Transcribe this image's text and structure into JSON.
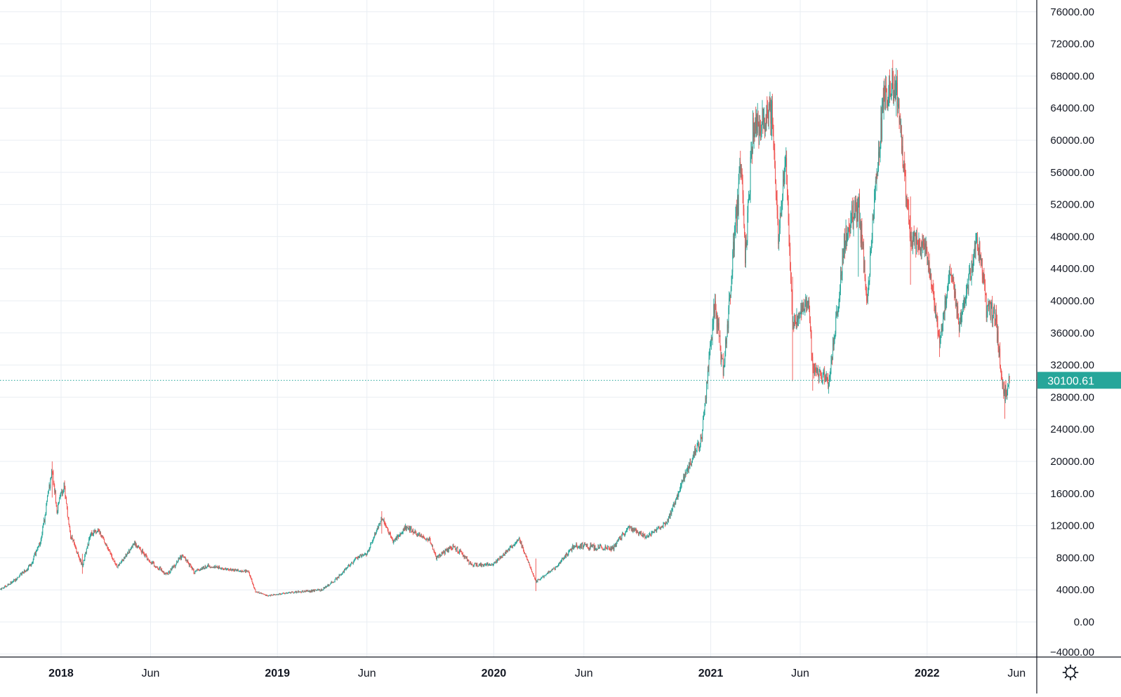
{
  "chart_data": {
    "type": "candlestick",
    "series_name": "",
    "time_labels": [
      "2018",
      "Jun",
      "2019",
      "Jun",
      "2020",
      "Jun",
      "2021",
      "Jun",
      "2022",
      "Jun"
    ],
    "time_label_dates": [
      "2018-01-01",
      "2018-06-01",
      "2019-01-01",
      "2019-06-01",
      "2020-01-01",
      "2020-06-01",
      "2021-01-01",
      "2021-06-01",
      "2022-01-01",
      "2022-06-01"
    ],
    "y_ticks": [
      -4000,
      0,
      4000,
      8000,
      12000,
      16000,
      20000,
      24000,
      28000,
      32000,
      36000,
      40000,
      44000,
      48000,
      52000,
      56000,
      60000,
      64000,
      68000,
      72000,
      76000
    ],
    "y_tick_labels": [
      "−4000.00",
      "0.00",
      "4000.00",
      "8000.00",
      "12000.00",
      "16000.00",
      "20000.00",
      "24000.00",
      "28000.00",
      "32000.00",
      "36000.00",
      "40000.00",
      "44000.00",
      "48000.00",
      "52000.00",
      "56000.00",
      "60000.00",
      "64000.00",
      "68000.00",
      "72000.00",
      "76000.00"
    ],
    "ylim": [
      -4000,
      76000
    ],
    "x_range": [
      "2017-09-20",
      "2022-07-05"
    ],
    "last_price": 30100.61,
    "last_price_label": "30100.61",
    "grid": true,
    "colors": {
      "up": "#26a69a",
      "down": "#ef5350",
      "grid": "#e9eef3",
      "axis": "#131722",
      "text": "#131722",
      "last_price": "#26a69a"
    },
    "price_path": [
      [
        "2017-09-20",
        4000
      ],
      [
        "2017-10-15",
        5200
      ],
      [
        "2017-11-10",
        7000
      ],
      [
        "2017-11-28",
        10000
      ],
      [
        "2017-12-17",
        19200
      ],
      [
        "2017-12-25",
        14000
      ],
      [
        "2018-01-06",
        17000
      ],
      [
        "2018-01-16",
        11000
      ],
      [
        "2018-02-06",
        7000
      ],
      [
        "2018-02-20",
        11000
      ],
      [
        "2018-03-05",
        11500
      ],
      [
        "2018-04-06",
        6800
      ],
      [
        "2018-05-05",
        9800
      ],
      [
        "2018-06-01",
        7500
      ],
      [
        "2018-06-29",
        5900
      ],
      [
        "2018-07-25",
        8300
      ],
      [
        "2018-08-14",
        6200
      ],
      [
        "2018-09-05",
        7000
      ],
      [
        "2018-10-15",
        6500
      ],
      [
        "2018-11-13",
        6300
      ],
      [
        "2018-11-25",
        3800
      ],
      [
        "2018-12-15",
        3250
      ],
      [
        "2019-01-15",
        3600
      ],
      [
        "2019-02-20",
        3850
      ],
      [
        "2019-03-15",
        3950
      ],
      [
        "2019-04-05",
        5000
      ],
      [
        "2019-05-15",
        8000
      ],
      [
        "2019-06-01",
        8500
      ],
      [
        "2019-06-26",
        13000
      ],
      [
        "2019-07-15",
        10000
      ],
      [
        "2019-08-06",
        11800
      ],
      [
        "2019-09-15",
        10200
      ],
      [
        "2019-09-26",
        8000
      ],
      [
        "2019-10-26",
        9500
      ],
      [
        "2019-11-25",
        7100
      ],
      [
        "2019-12-31",
        7200
      ],
      [
        "2020-02-13",
        10300
      ],
      [
        "2020-03-12",
        5000
      ],
      [
        "2020-04-15",
        6800
      ],
      [
        "2020-05-15",
        9500
      ],
      [
        "2020-07-20",
        9200
      ],
      [
        "2020-08-15",
        11800
      ],
      [
        "2020-09-15",
        10500
      ],
      [
        "2020-10-20",
        12500
      ],
      [
        "2020-11-20",
        18500
      ],
      [
        "2020-12-17",
        23000
      ],
      [
        "2021-01-08",
        40000
      ],
      [
        "2021-01-22",
        31000
      ],
      [
        "2021-02-21",
        57000
      ],
      [
        "2021-02-28",
        45000
      ],
      [
        "2021-03-13",
        61000
      ],
      [
        "2021-04-14",
        63500
      ],
      [
        "2021-04-25",
        48000
      ],
      [
        "2021-05-08",
        58000
      ],
      [
        "2021-05-19",
        37000
      ],
      [
        "2021-06-15",
        40000
      ],
      [
        "2021-06-22",
        31500
      ],
      [
        "2021-07-20",
        29800
      ],
      [
        "2021-08-14",
        47000
      ],
      [
        "2021-08-23",
        49500
      ],
      [
        "2021-09-07",
        52000
      ],
      [
        "2021-09-21",
        40500
      ],
      [
        "2021-10-20",
        65000
      ],
      [
        "2021-11-10",
        67500
      ],
      [
        "2021-11-26",
        54000
      ],
      [
        "2021-12-04",
        48000
      ],
      [
        "2021-12-31",
        46300
      ],
      [
        "2022-01-22",
        35000
      ],
      [
        "2022-02-10",
        44000
      ],
      [
        "2022-02-24",
        37000
      ],
      [
        "2022-03-28",
        47500
      ],
      [
        "2022-04-11",
        39000
      ],
      [
        "2022-04-26",
        38000
      ],
      [
        "2022-05-09",
        30000
      ],
      [
        "2022-05-12",
        28500
      ],
      [
        "2022-05-20",
        30100
      ]
    ],
    "spikes": [
      [
        "2017-12-17",
        20000,
        15500
      ],
      [
        "2018-02-06",
        8500,
        6000
      ],
      [
        "2019-06-26",
        13800,
        11000
      ],
      [
        "2020-03-12",
        7900,
        3850
      ],
      [
        "2021-04-14",
        64800,
        60000
      ],
      [
        "2021-05-19",
        43000,
        30000
      ],
      [
        "2021-06-22",
        33000,
        28800
      ],
      [
        "2021-07-20",
        30500,
        29300
      ],
      [
        "2021-09-07",
        52900,
        43000
      ],
      [
        "2021-11-10",
        69000,
        63000
      ],
      [
        "2021-12-04",
        53000,
        42000
      ],
      [
        "2022-01-22",
        36500,
        33000
      ],
      [
        "2022-05-12",
        30000,
        25300
      ]
    ]
  },
  "icons": {
    "settings": "gear-icon"
  }
}
